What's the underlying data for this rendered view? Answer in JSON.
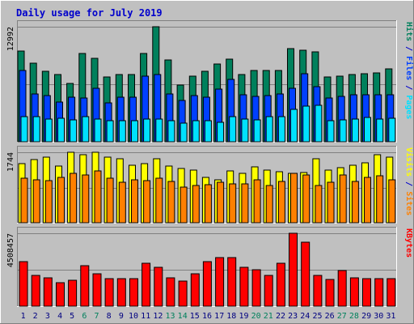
{
  "colors": {
    "background": "#C0C0C0",
    "title": "#0000CC",
    "hits": "#00805C",
    "files": "#0040FF",
    "pages": "#00E0FF",
    "visits": "#FFFF00",
    "sites": "#FF8000",
    "kbytes": "#FF0000",
    "weekend": "#00805C",
    "weekday": "#000080"
  },
  "chart_data": {
    "type": "bar",
    "title": "Daily usage for July 2019",
    "categories": [
      "1",
      "2",
      "3",
      "4",
      "5",
      "6",
      "7",
      "8",
      "9",
      "10",
      "11",
      "12",
      "13",
      "14",
      "15",
      "16",
      "17",
      "18",
      "19",
      "20",
      "21",
      "22",
      "23",
      "24",
      "25",
      "26",
      "27",
      "28",
      "29",
      "30",
      "31"
    ],
    "weekend_days": [
      "6",
      "7",
      "13",
      "14",
      "20",
      "21",
      "27",
      "28"
    ],
    "panels": [
      {
        "name": "top",
        "ymax_label": "12992",
        "ymax": 12992,
        "right_labels": [
          {
            "text": "Hits",
            "color_key": "hits"
          },
          {
            "text": " / ",
            "color_key": "title"
          },
          {
            "text": "Files",
            "color_key": "files"
          },
          {
            "text": " / ",
            "color_key": "title"
          },
          {
            "text": "Pages",
            "color_key": "pages"
          }
        ],
        "series": [
          {
            "name": "Hits",
            "color_key": "hits",
            "values": [
              10270,
              8840,
              7940,
              7590,
              6560,
              10000,
              9450,
              7330,
              7590,
              7590,
              10000,
              12992,
              9270,
              6380,
              7420,
              7940,
              8750,
              9360,
              7590,
              8060,
              8060,
              8060,
              10520,
              10350,
              10180,
              7330,
              7420,
              7590,
              7680,
              7760,
              8240
            ]
          },
          {
            "name": "Files",
            "color_key": "files",
            "values": [
              8060,
              5440,
              5180,
              4490,
              5010,
              4920,
              6040,
              4400,
              5010,
              5010,
              7420,
              7590,
              5440,
              4660,
              5260,
              5000,
              5960,
              7070,
              5270,
              5090,
              5180,
              5440,
              6040,
              7680,
              6210,
              4920,
              5090,
              5350,
              5270,
              5350,
              5350
            ]
          },
          {
            "name": "Pages",
            "color_key": "pages",
            "values": [
              2840,
              2850,
              2580,
              2610,
              2500,
              2850,
              2590,
              2410,
              2410,
              2410,
              2590,
              2580,
              2410,
              2070,
              2410,
              2410,
              2240,
              2850,
              2590,
              2500,
              2850,
              2850,
              3620,
              4050,
              4140,
              2410,
              2500,
              2580,
              2760,
              2590,
              2680
            ]
          }
        ]
      },
      {
        "name": "middle",
        "ymax_label": "1744",
        "ymax": 1744,
        "right_labels": [
          {
            "text": "Visits",
            "color_key": "visits"
          },
          {
            "text": " / ",
            "color_key": "title"
          },
          {
            "text": "Sites",
            "color_key": "sites"
          }
        ],
        "series": [
          {
            "name": "Visits",
            "color_key": "visits",
            "values": [
              1472,
              1568,
              1616,
              1408,
              1744,
              1680,
              1744,
              1632,
              1584,
              1424,
              1456,
              1584,
              1408,
              1344,
              1312,
              1120,
              1072,
              1280,
              1232,
              1392,
              1312,
              1264,
              1232,
              1248,
              1584,
              1296,
              1360,
              1424,
              1488,
              1680,
              1616
            ]
          },
          {
            "name": "Sites",
            "color_key": "sites",
            "values": [
              1104,
              1056,
              1040,
              1120,
              1216,
              1184,
              1280,
              1104,
              1008,
              1056,
              1040,
              1104,
              1024,
              880,
              928,
              944,
              1008,
              960,
              960,
              1056,
              928,
              1024,
              1216,
              1184,
              928,
              1008,
              1184,
              1024,
              1120,
              1168,
              1056
            ]
          }
        ]
      },
      {
        "name": "bottom",
        "ymax_label": "4508457",
        "ymax": 4508457,
        "right_labels": [
          {
            "text": "KBytes",
            "color_key": "kbytes"
          }
        ],
        "series": [
          {
            "name": "KBytes",
            "color_key": "kbytes",
            "values": [
              2750000,
              1900000,
              1750000,
              1450000,
              1600000,
              2500000,
              2000000,
              1700000,
              1700000,
              1700000,
              2650000,
              2400000,
              1750000,
              1550000,
              2000000,
              2750000,
              3000000,
              3000000,
              2400000,
              2250000,
              1900000,
              2650000,
              4508457,
              3950000,
              1900000,
              1650000,
              2200000,
              1750000,
              1700000,
              1700000,
              1700000
            ]
          }
        ]
      }
    ]
  }
}
